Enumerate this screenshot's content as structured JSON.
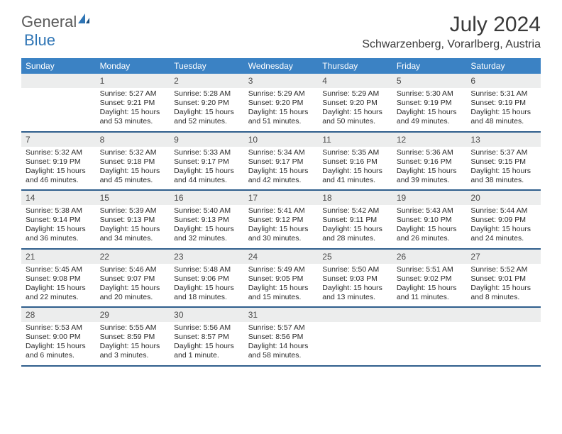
{
  "logo": {
    "text1": "General",
    "text2": "Blue"
  },
  "title": "July 2024",
  "location": "Schwarzenberg, Vorarlberg, Austria",
  "colors": {
    "header_bg": "#3b82c4",
    "header_text": "#ffffff",
    "daynum_bg": "#eceded",
    "border": "#2f5e8c",
    "logo_gray": "#5a5a5a",
    "logo_blue": "#2f75b5"
  },
  "weekdays": [
    "Sunday",
    "Monday",
    "Tuesday",
    "Wednesday",
    "Thursday",
    "Friday",
    "Saturday"
  ],
  "weeks": [
    {
      "nums": [
        "",
        "1",
        "2",
        "3",
        "4",
        "5",
        "6"
      ],
      "info": [
        "",
        "Sunrise: 5:27 AM\nSunset: 9:21 PM\nDaylight: 15 hours and 53 minutes.",
        "Sunrise: 5:28 AM\nSunset: 9:20 PM\nDaylight: 15 hours and 52 minutes.",
        "Sunrise: 5:29 AM\nSunset: 9:20 PM\nDaylight: 15 hours and 51 minutes.",
        "Sunrise: 5:29 AM\nSunset: 9:20 PM\nDaylight: 15 hours and 50 minutes.",
        "Sunrise: 5:30 AM\nSunset: 9:19 PM\nDaylight: 15 hours and 49 minutes.",
        "Sunrise: 5:31 AM\nSunset: 9:19 PM\nDaylight: 15 hours and 48 minutes."
      ]
    },
    {
      "nums": [
        "7",
        "8",
        "9",
        "10",
        "11",
        "12",
        "13"
      ],
      "info": [
        "Sunrise: 5:32 AM\nSunset: 9:19 PM\nDaylight: 15 hours and 46 minutes.",
        "Sunrise: 5:32 AM\nSunset: 9:18 PM\nDaylight: 15 hours and 45 minutes.",
        "Sunrise: 5:33 AM\nSunset: 9:17 PM\nDaylight: 15 hours and 44 minutes.",
        "Sunrise: 5:34 AM\nSunset: 9:17 PM\nDaylight: 15 hours and 42 minutes.",
        "Sunrise: 5:35 AM\nSunset: 9:16 PM\nDaylight: 15 hours and 41 minutes.",
        "Sunrise: 5:36 AM\nSunset: 9:16 PM\nDaylight: 15 hours and 39 minutes.",
        "Sunrise: 5:37 AM\nSunset: 9:15 PM\nDaylight: 15 hours and 38 minutes."
      ]
    },
    {
      "nums": [
        "14",
        "15",
        "16",
        "17",
        "18",
        "19",
        "20"
      ],
      "info": [
        "Sunrise: 5:38 AM\nSunset: 9:14 PM\nDaylight: 15 hours and 36 minutes.",
        "Sunrise: 5:39 AM\nSunset: 9:13 PM\nDaylight: 15 hours and 34 minutes.",
        "Sunrise: 5:40 AM\nSunset: 9:13 PM\nDaylight: 15 hours and 32 minutes.",
        "Sunrise: 5:41 AM\nSunset: 9:12 PM\nDaylight: 15 hours and 30 minutes.",
        "Sunrise: 5:42 AM\nSunset: 9:11 PM\nDaylight: 15 hours and 28 minutes.",
        "Sunrise: 5:43 AM\nSunset: 9:10 PM\nDaylight: 15 hours and 26 minutes.",
        "Sunrise: 5:44 AM\nSunset: 9:09 PM\nDaylight: 15 hours and 24 minutes."
      ]
    },
    {
      "nums": [
        "21",
        "22",
        "23",
        "24",
        "25",
        "26",
        "27"
      ],
      "info": [
        "Sunrise: 5:45 AM\nSunset: 9:08 PM\nDaylight: 15 hours and 22 minutes.",
        "Sunrise: 5:46 AM\nSunset: 9:07 PM\nDaylight: 15 hours and 20 minutes.",
        "Sunrise: 5:48 AM\nSunset: 9:06 PM\nDaylight: 15 hours and 18 minutes.",
        "Sunrise: 5:49 AM\nSunset: 9:05 PM\nDaylight: 15 hours and 15 minutes.",
        "Sunrise: 5:50 AM\nSunset: 9:03 PM\nDaylight: 15 hours and 13 minutes.",
        "Sunrise: 5:51 AM\nSunset: 9:02 PM\nDaylight: 15 hours and 11 minutes.",
        "Sunrise: 5:52 AM\nSunset: 9:01 PM\nDaylight: 15 hours and 8 minutes."
      ]
    },
    {
      "nums": [
        "28",
        "29",
        "30",
        "31",
        "",
        "",
        ""
      ],
      "info": [
        "Sunrise: 5:53 AM\nSunset: 9:00 PM\nDaylight: 15 hours and 6 minutes.",
        "Sunrise: 5:55 AM\nSunset: 8:59 PM\nDaylight: 15 hours and 3 minutes.",
        "Sunrise: 5:56 AM\nSunset: 8:57 PM\nDaylight: 15 hours and 1 minute.",
        "Sunrise: 5:57 AM\nSunset: 8:56 PM\nDaylight: 14 hours and 58 minutes.",
        "",
        "",
        ""
      ]
    }
  ]
}
